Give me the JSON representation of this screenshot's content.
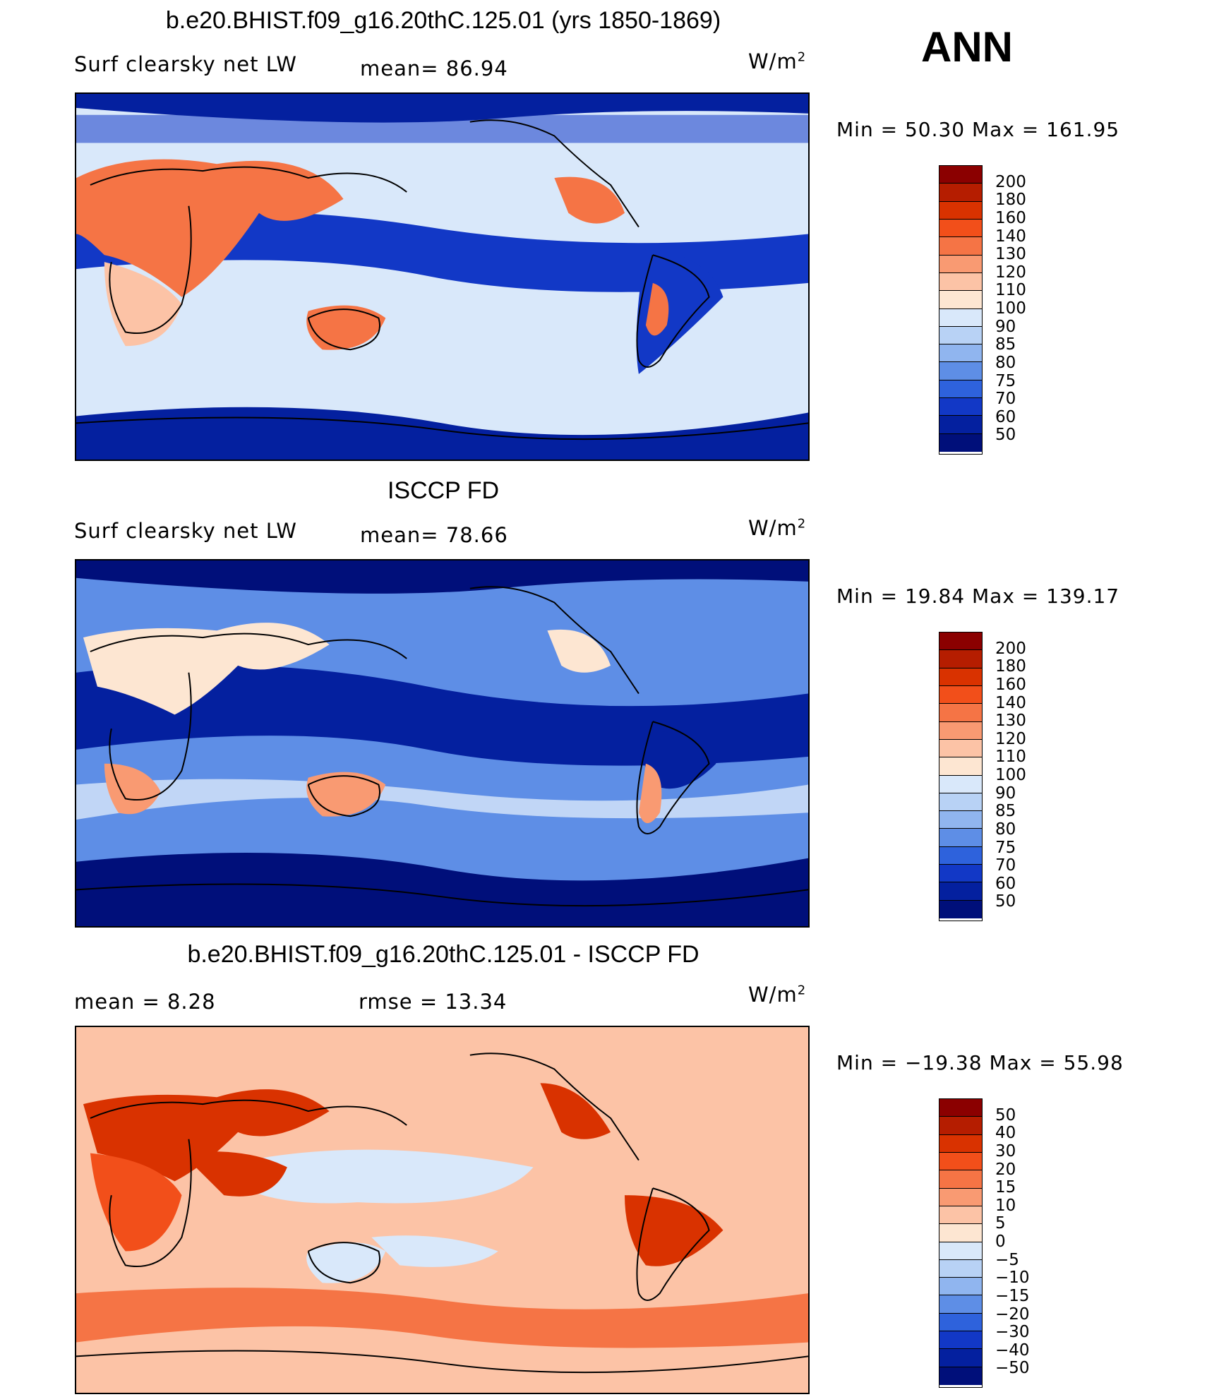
{
  "season": "ANN",
  "panels": [
    {
      "title": "b.e20.BHIST.f09_g16.20thC.125.01 (yrs 1850-1869)",
      "left_label": "Surf  clearsky  net  LW",
      "stat1": "mean=   86.94",
      "stat2": "",
      "units": "W/m",
      "units_exp": "2",
      "minmax": "Min  =    50.30  Max  =  161.95",
      "colorbar": {
        "labels": [
          "200",
          "180",
          "160",
          "140",
          "130",
          "120",
          "110",
          "100",
          "90",
          "85",
          "80",
          "75",
          "70",
          "60",
          "50"
        ],
        "colors": [
          "#8b0000",
          "#b51d00",
          "#d93200",
          "#f24f1a",
          "#f57445",
          "#f99a72",
          "#fcc3a6",
          "#fde6d2",
          "#d9e8fa",
          "#b8d2f5",
          "#90b5ef",
          "#5e8ee6",
          "#2e62dc",
          "#1238c6",
          "#04209f",
          "#000f7a"
        ]
      }
    },
    {
      "title": "ISCCP FD",
      "left_label": "Surf  clearsky  net  LW",
      "stat1": "mean=   78.66",
      "stat2": "",
      "units": "W/m",
      "units_exp": "2",
      "minmax": "Min  =    19.84  Max  =  139.17",
      "colorbar": {
        "labels": [
          "200",
          "180",
          "160",
          "140",
          "130",
          "120",
          "110",
          "100",
          "90",
          "85",
          "80",
          "75",
          "70",
          "60",
          "50"
        ],
        "colors": [
          "#8b0000",
          "#b51d00",
          "#d93200",
          "#f24f1a",
          "#f57445",
          "#f99a72",
          "#fcc3a6",
          "#fde6d2",
          "#d9e8fa",
          "#b8d2f5",
          "#90b5ef",
          "#5e8ee6",
          "#2e62dc",
          "#1238c6",
          "#04209f",
          "#000f7a"
        ]
      }
    },
    {
      "title": "b.e20.BHIST.f09_g16.20thC.125.01 - ISCCP FD",
      "left_label": "mean  =     8.28",
      "stat1": "rmse  =    13.34",
      "stat2": "",
      "units": "W/m",
      "units_exp": "2",
      "minmax": "Min  = −19.38  Max  =    55.98",
      "colorbar": {
        "labels": [
          "50",
          "40",
          "30",
          "20",
          "15",
          "10",
          "5",
          "0",
          "−5",
          "−10",
          "−15",
          "−20",
          "−30",
          "−40",
          "−50"
        ],
        "colors": [
          "#8b0000",
          "#b51d00",
          "#d93200",
          "#f24f1a",
          "#f57445",
          "#f99a72",
          "#fcc3a6",
          "#fde6d2",
          "#d9e8fa",
          "#b8d2f5",
          "#90b5ef",
          "#5e8ee6",
          "#2e62dc",
          "#1238c6",
          "#04209f",
          "#000f7a"
        ]
      }
    }
  ],
  "map_style": {
    "panel1": {
      "background": "#d9e8fa",
      "tropics": "#1238c6",
      "polar": "#04209f",
      "land_hot": "#f57445",
      "land_warm": "#fcc3a6"
    },
    "panel2": {
      "background": "#5e8ee6",
      "tropics": "#04209f",
      "polar": "#000f7a",
      "land_hot": "#f99a72",
      "land_warm": "#fde6d2"
    },
    "panel3": {
      "background": "#fcc3a6",
      "tropics": "#d9e8fa",
      "polar": "#f57445",
      "land_hot": "#d93200",
      "land_warm": "#f24f1a"
    }
  }
}
